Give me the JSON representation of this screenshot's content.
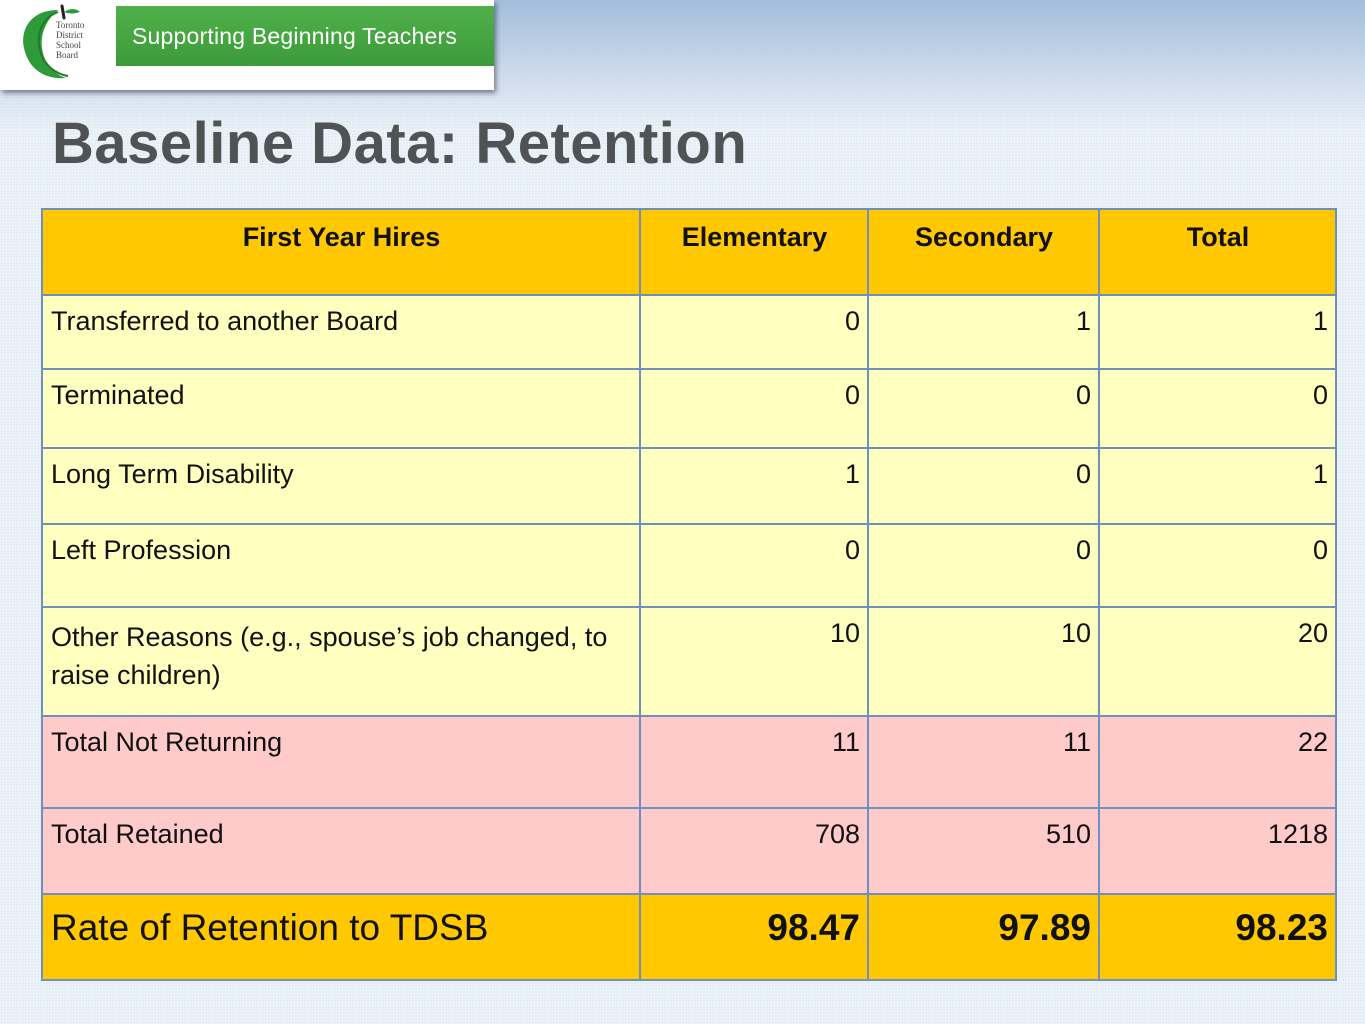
{
  "banner": {
    "logo_text": "Toronto\nDistrict\nSchool\nBoard",
    "title": "Supporting Beginning Teachers",
    "brand_green": "#3d9c3a"
  },
  "page_title": "Baseline Data:  Retention",
  "table": {
    "headers": [
      "First Year Hires",
      "Elementary",
      "Secondary",
      "Total"
    ],
    "rows": [
      {
        "label": "Transferred to another Board",
        "values": [
          "0",
          "1",
          "1"
        ]
      },
      {
        "label": "Terminated",
        "values": [
          "0",
          "0",
          "0"
        ]
      },
      {
        "label": "Long Term Disability",
        "values": [
          "1",
          "0",
          "1"
        ]
      },
      {
        "label": "Left Profession",
        "values": [
          "0",
          "0",
          "0"
        ]
      },
      {
        "label": "Other Reasons (e.g., spouse’s job changed, to raise children)",
        "values": [
          "10",
          "10",
          "20"
        ]
      },
      {
        "label": "Total Not Returning",
        "values": [
          "11",
          "11",
          "22"
        ]
      },
      {
        "label": "Total Retained",
        "values": [
          "708",
          "510",
          "1218"
        ]
      },
      {
        "label": "Rate of Retention to TDSB",
        "values": [
          "98.47",
          "97.89",
          "98.23"
        ]
      }
    ],
    "colors": {
      "header": "#ffc800",
      "detail_rows": "#ffffc0",
      "total_rows": "#ffcaca",
      "border": "#6f8fbf"
    }
  }
}
